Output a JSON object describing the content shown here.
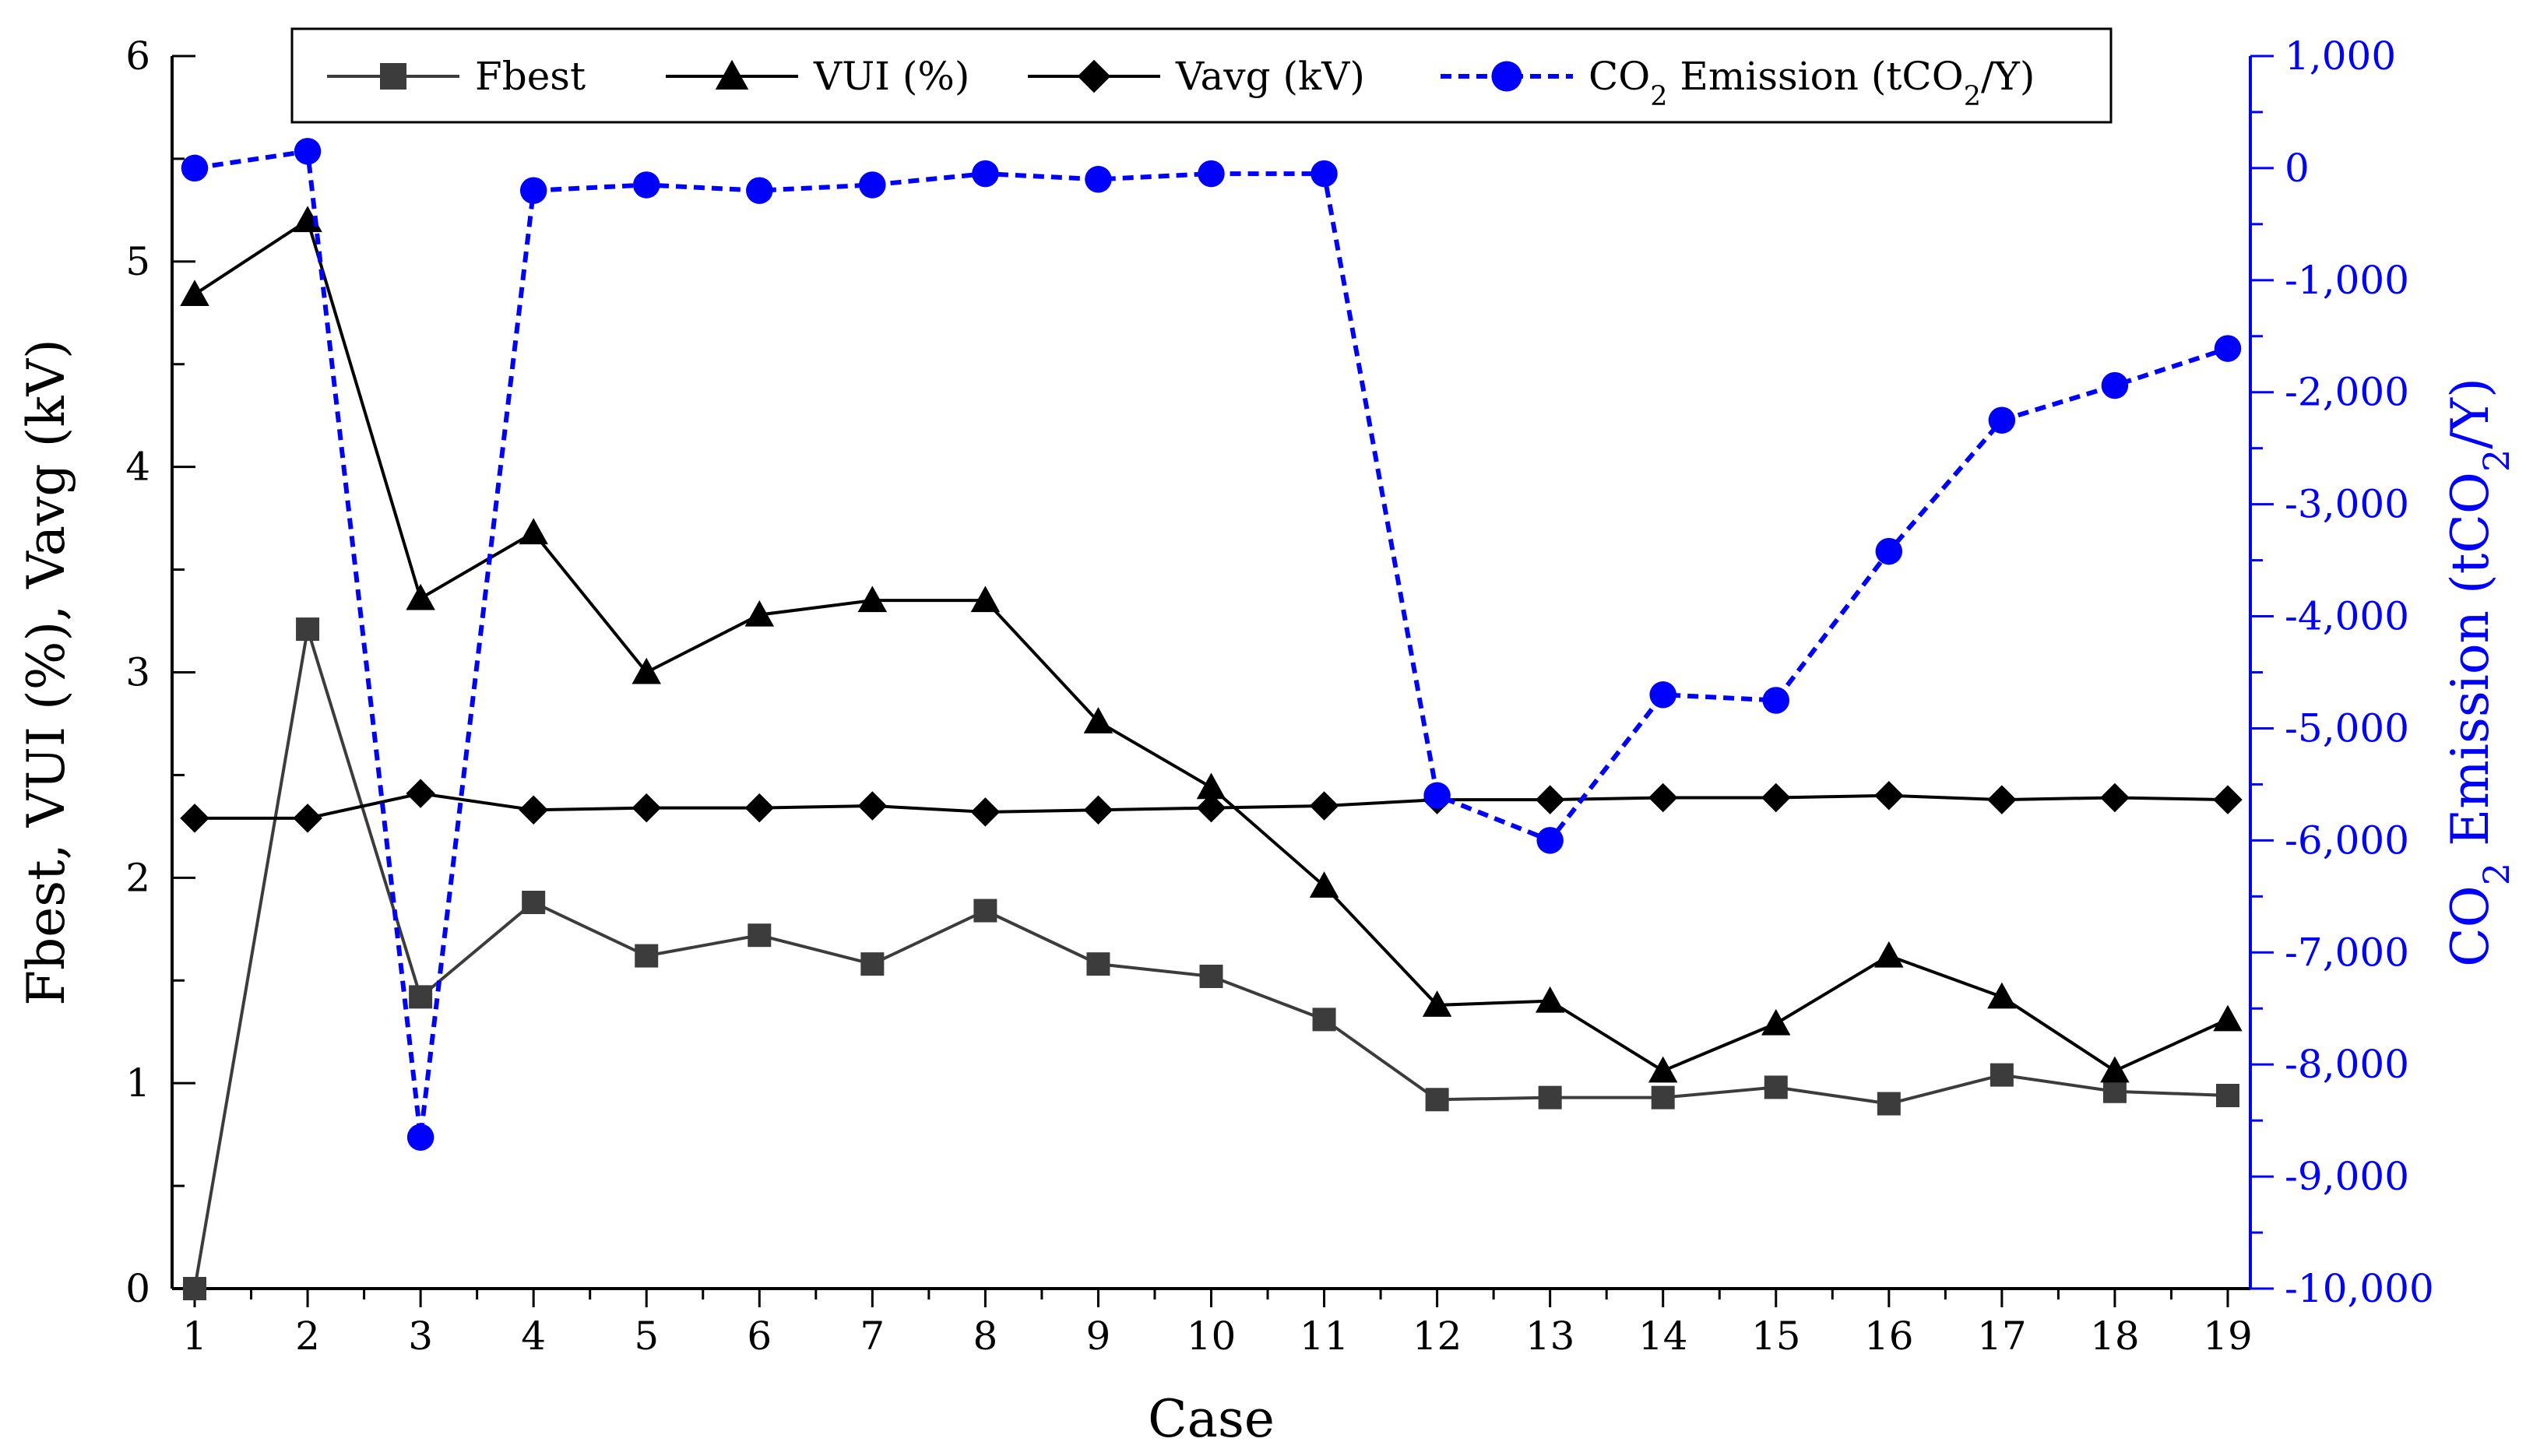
{
  "chart_data": {
    "type": "line",
    "x": [
      1,
      2,
      3,
      4,
      5,
      6,
      7,
      8,
      9,
      10,
      11,
      12,
      13,
      14,
      15,
      16,
      17,
      18,
      19
    ],
    "xlabel": "Case",
    "ylabel": "Fbest, VUI (%), Vavg (kV)",
    "y2label_prefix": "CO",
    "y2label_sub": "2",
    "y2label_suffix": " Emission (tCO",
    "y2label_sub2": "2",
    "y2label_end": "/Y)",
    "ylim": [
      0,
      6
    ],
    "y2lim": [
      -10000,
      1000
    ],
    "yticks": [
      0,
      1,
      2,
      3,
      4,
      5,
      6
    ],
    "y2ticks": [
      -10000,
      -9000,
      -8000,
      -7000,
      -6000,
      -5000,
      -4000,
      -3000,
      -2000,
      -1000,
      0,
      1000
    ],
    "y2tick_labels": [
      "-10,000",
      "-9,000",
      "-8,000",
      "-7,000",
      "-6,000",
      "-5,000",
      "-4,000",
      "-3,000",
      "-2,000",
      "-1,000",
      "0",
      "1,000"
    ],
    "grid": false,
    "legend_position": "top",
    "series": [
      {
        "name": "Fbest",
        "axis": "left",
        "marker": "square",
        "color": "#3c3c3c",
        "values": [
          0.0,
          3.21,
          1.42,
          1.88,
          1.62,
          1.72,
          1.58,
          1.84,
          1.58,
          1.52,
          1.31,
          0.92,
          0.93,
          0.93,
          0.98,
          0.9,
          1.04,
          0.96,
          0.94
        ]
      },
      {
        "name": "VUI (%)",
        "axis": "left",
        "marker": "triangle",
        "color": "#000000",
        "values": [
          4.84,
          5.2,
          3.36,
          3.68,
          3.0,
          3.28,
          3.35,
          3.35,
          2.76,
          2.44,
          1.96,
          1.38,
          1.4,
          1.06,
          1.29,
          1.62,
          1.42,
          1.06,
          1.31
        ]
      },
      {
        "name": "Vavg (kV)",
        "axis": "left",
        "marker": "diamond",
        "color": "#000000",
        "values": [
          2.29,
          2.29,
          2.41,
          2.33,
          2.34,
          2.34,
          2.35,
          2.32,
          2.33,
          2.34,
          2.35,
          2.38,
          2.38,
          2.39,
          2.39,
          2.4,
          2.38,
          2.39,
          2.38
        ]
      },
      {
        "name_prefix": "CO",
        "name_sub": "2",
        "name_suffix": " Emission (tCO",
        "name_sub2": "2",
        "name_end": "/Y)",
        "axis": "right",
        "marker": "circle",
        "dashed": true,
        "color": "#0000ff",
        "values": [
          0,
          150,
          -8650,
          -200,
          -150,
          -200,
          -150,
          -50,
          -100,
          -50,
          -50,
          -5600,
          -6000,
          -4700,
          -4750,
          -3420,
          -2250,
          -1940,
          -1610
        ]
      }
    ]
  }
}
